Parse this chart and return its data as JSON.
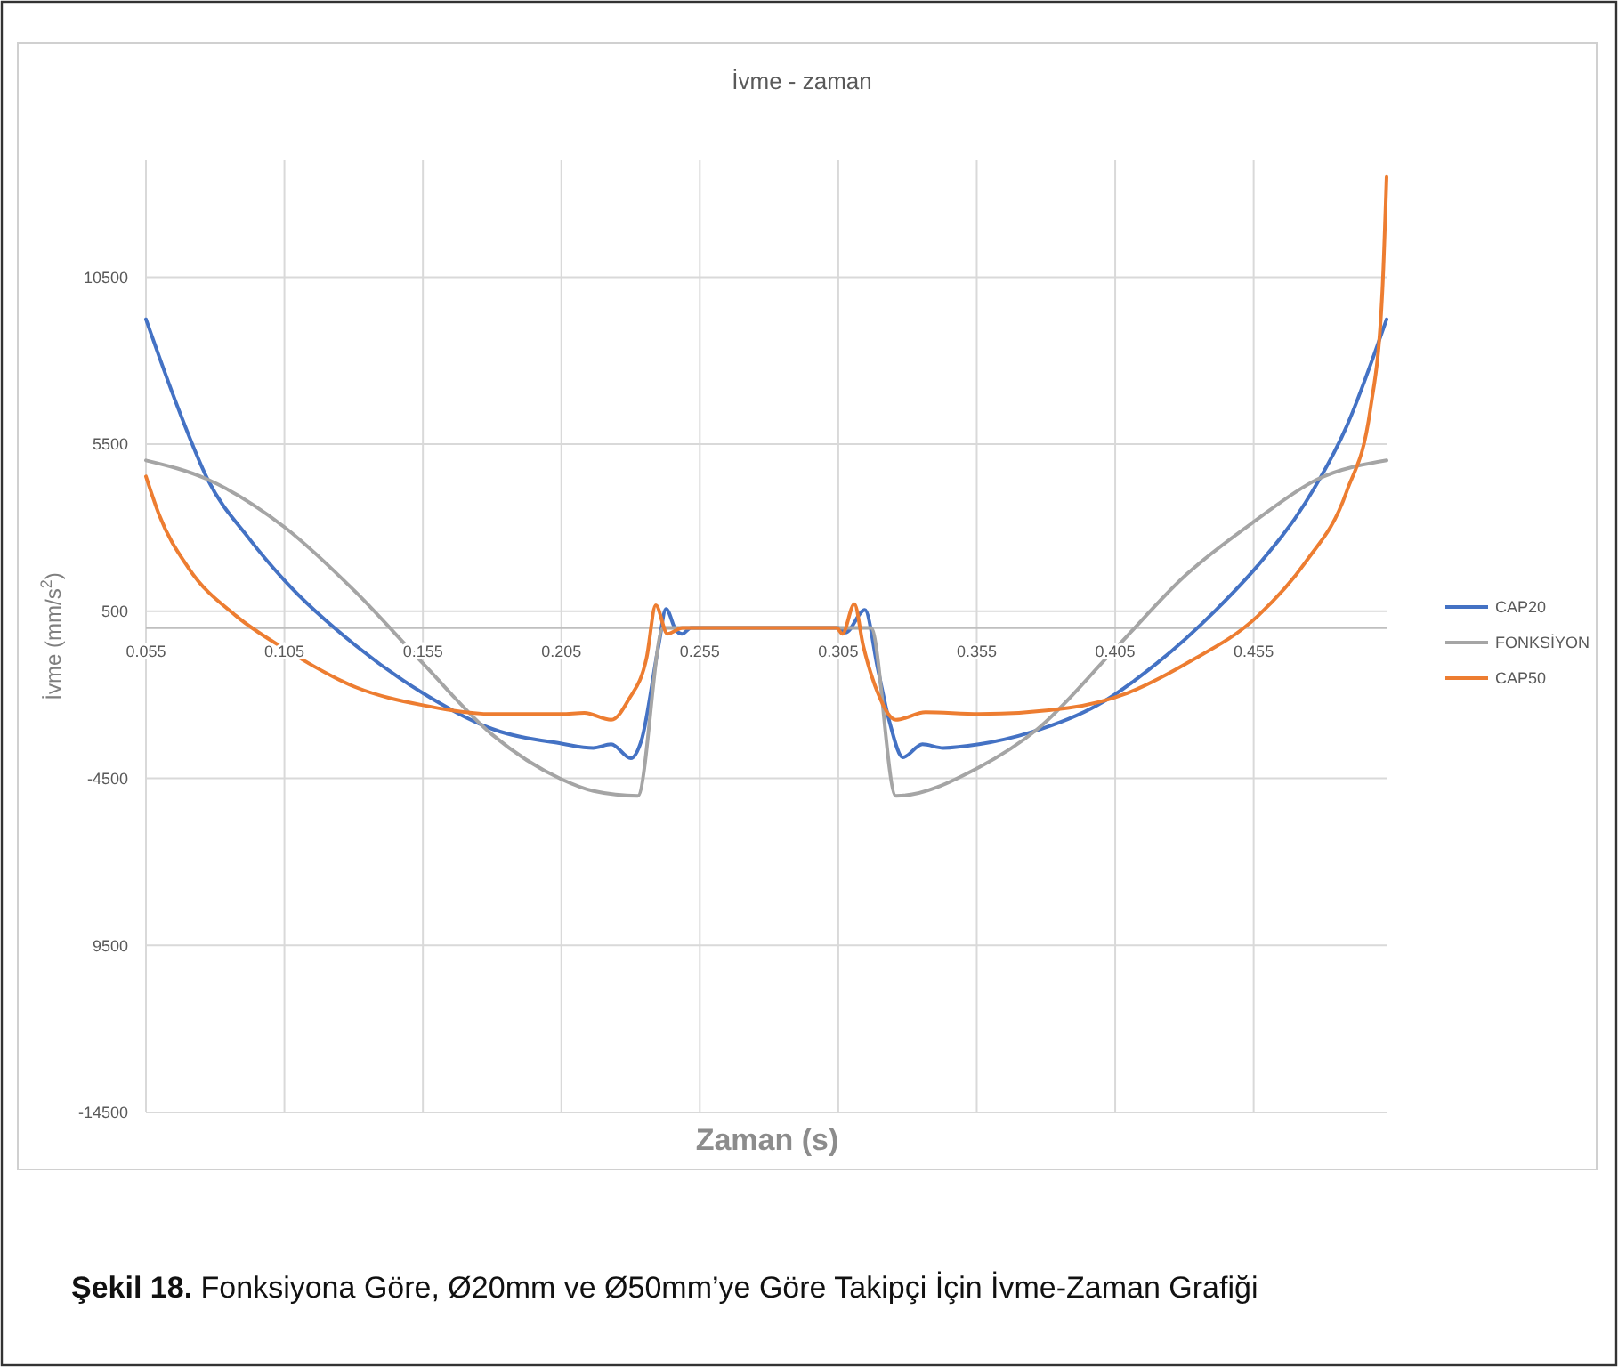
{
  "chart_data": {
    "type": "line",
    "title": "İvme - zaman",
    "xlabel": "Zaman (s)",
    "ylabel": "İvme (mm/s$^{2}$)",
    "xlim": [
      0.055,
      0.503
    ],
    "xticks": [
      0.055,
      0.105,
      0.155,
      0.205,
      0.255,
      0.305,
      0.355,
      0.405,
      0.455
    ],
    "ylim": [
      -14500,
      14000
    ],
    "yticks": [
      -14500,
      {
        "value": -9500,
        "label": "9500"
      },
      -4500,
      500,
      5500,
      10500
    ],
    "grid": true,
    "legend": "right",
    "line_style": "solid",
    "marker": "none",
    "annotations": [
      "Şekil 18. Fonksiyona Göre, Ø20mm ve Ø50mm’ye Göre Takipçi İçin İvme-Zaman Grafiği"
    ],
    "series": [
      {
        "name": "CAP20",
        "color": "#4472c4",
        "x": [
          0.055,
          0.0666,
          0.0773,
          0.0923,
          0.105,
          0.1308,
          0.155,
          0.18,
          0.205,
          0.2165,
          0.223,
          0.2301,
          0.2339,
          0.2401,
          0.2428,
          0.2465,
          0.2486,
          0.2518,
          0.305,
          0.3076,
          0.3146,
          0.3193,
          0.3236,
          0.3283,
          0.3354,
          0.3429,
          0.3558,
          0.375,
          0.3986,
          0.42,
          0.4414,
          0.4565,
          0.4736,
          0.4886,
          0.503
        ],
        "values": [
          9240,
          6580,
          4445,
          2670,
          1425,
          -530,
          -1950,
          -3020,
          -3460,
          -3590,
          -3480,
          -3900,
          -3370,
          -530,
          570,
          -85,
          -175,
          0,
          0,
          -140,
          540,
          -1240,
          -2840,
          -3870,
          -3480,
          -3590,
          -3480,
          -3110,
          -2310,
          -1060,
          540,
          1870,
          3740,
          6040,
          9240
        ]
      },
      {
        "name": "FONKSİYON",
        "color": "#a5a5a5",
        "x": [
          0.055,
          0.0773,
          0.105,
          0.1308,
          0.155,
          0.18,
          0.205,
          0.2166,
          0.2326,
          0.2418,
          0.3168,
          0.3258,
          0.3558,
          0.377,
          0.405,
          0.4307,
          0.4554,
          0.4779,
          0.503
        ],
        "values": [
          5015,
          4445,
          3020,
          1070,
          -1060,
          -3190,
          -4525,
          -4880,
          -5025,
          0,
          0,
          -5025,
          -4170,
          -3020,
          -620,
          1600,
          3200,
          4445,
          5015
        ]
      },
      {
        "name": "CAP50",
        "color": "#ed7d31",
        "x": [
          0.055,
          0.0598,
          0.0705,
          0.0876,
          0.105,
          0.1308,
          0.155,
          0.18,
          0.205,
          0.2133,
          0.223,
          0.2294,
          0.2358,
          0.2391,
          0.2433,
          0.2487,
          0.3044,
          0.3065,
          0.3108,
          0.314,
          0.3193,
          0.3258,
          0.3365,
          0.3558,
          0.3879,
          0.4093,
          0.4307,
          0.4565,
          0.4736,
          0.4886,
          0.4972,
          0.5015,
          0.503
        ],
        "values": [
          4535,
          3380,
          1780,
          360,
          -620,
          -1775,
          -2310,
          -2575,
          -2575,
          -2540,
          -2750,
          -2130,
          -885,
          680,
          -175,
          0,
          0,
          -175,
          715,
          -530,
          -1950,
          -2750,
          -2520,
          -2575,
          -2395,
          -1950,
          -1060,
          360,
          1955,
          4090,
          6580,
          10130,
          13500
        ]
      }
    ]
  }
}
